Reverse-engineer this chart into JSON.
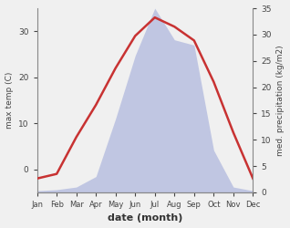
{
  "months": [
    "Jan",
    "Feb",
    "Mar",
    "Apr",
    "May",
    "Jun",
    "Jul",
    "Aug",
    "Sep",
    "Oct",
    "Nov",
    "Dec"
  ],
  "month_indices": [
    1,
    2,
    3,
    4,
    5,
    6,
    7,
    8,
    9,
    10,
    11,
    12
  ],
  "temperature": [
    -2.0,
    -1.0,
    7.0,
    14.0,
    22.0,
    29.0,
    33.0,
    31.0,
    28.0,
    19.0,
    8.0,
    -2.0
  ],
  "precipitation": [
    0.3,
    0.5,
    1.0,
    3.0,
    14.0,
    26.0,
    35.0,
    29.0,
    28.0,
    8.0,
    1.0,
    0.3
  ],
  "temp_color": "#c83232",
  "precip_fill_color": "#b8bfe0",
  "precip_edge_color": "#b8bfe0",
  "ylabel_left": "max temp (C)",
  "ylabel_right": "med. precipitation (kg/m2)",
  "xlabel": "date (month)",
  "ylim_left": [
    -5,
    35
  ],
  "ylim_right": [
    0,
    35
  ],
  "left_yticks": [
    0,
    10,
    20,
    30
  ],
  "right_yticks": [
    0,
    5,
    10,
    15,
    20,
    25,
    30,
    35
  ],
  "background_color": "#f0f0f0"
}
